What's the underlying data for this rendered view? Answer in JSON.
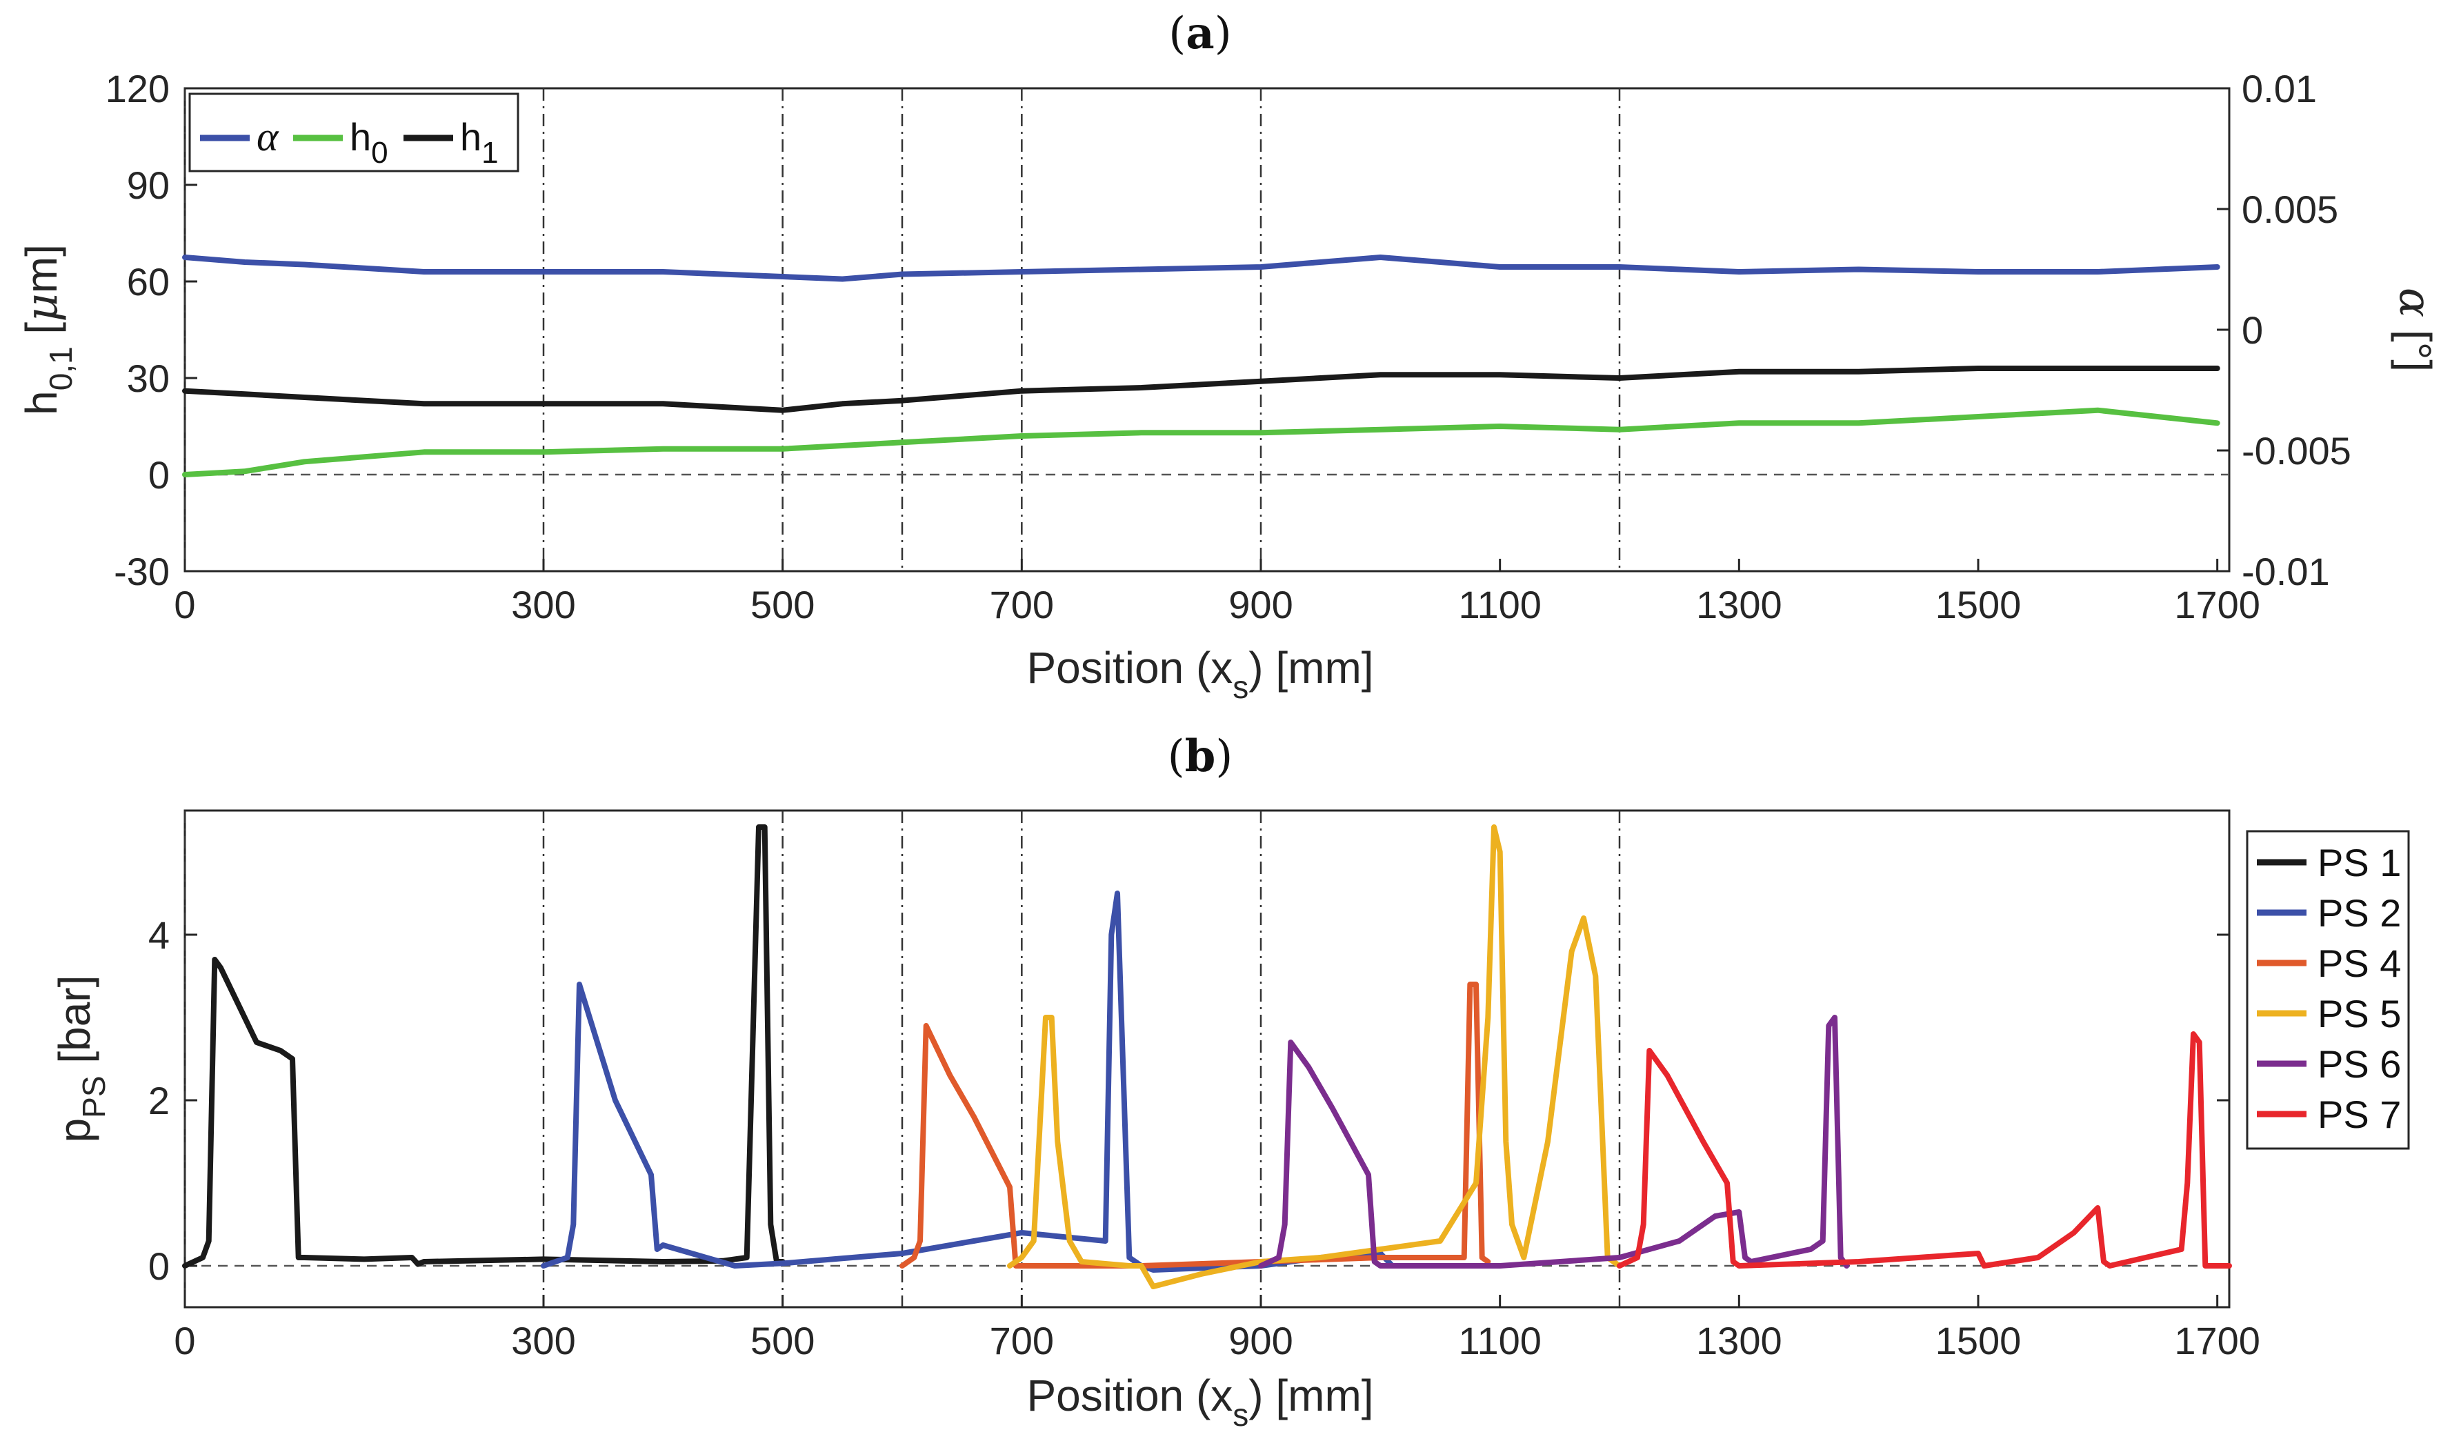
{
  "chart_data": [
    {
      "id": "a",
      "type": "line",
      "title": "(a)",
      "xlabel": "Position (x_s) [mm]",
      "ylabel": "h_0,1 [μm]",
      "y2label": "α [°]",
      "xlim": [
        0,
        1710
      ],
      "ylim": [
        -30,
        120
      ],
      "y2lim": [
        -0.01,
        0.01
      ],
      "xticks": [
        "0",
        "300",
        "500",
        "700",
        "900",
        "1100",
        "1300",
        "1500",
        "1700"
      ],
      "yticks": [
        "-30",
        "0",
        "30",
        "60",
        "90",
        "120"
      ],
      "y2ticks": [
        "-0.01",
        "-0.005",
        "0",
        "0.005",
        "0.01"
      ],
      "vlines": [
        0,
        300,
        500,
        600,
        700,
        900,
        1200
      ],
      "hline": 0,
      "legend_position": "top-left",
      "series": [
        {
          "name": "α",
          "color": "#3c50a8",
          "axis": "right",
          "x": [
            0,
            50,
            100,
            200,
            300,
            400,
            500,
            550,
            600,
            700,
            800,
            900,
            1000,
            1100,
            1200,
            1300,
            1400,
            1500,
            1600,
            1700
          ],
          "values": [
            0.003,
            0.0028,
            0.0027,
            0.0024,
            0.0024,
            0.0024,
            0.0022,
            0.0021,
            0.0023,
            0.0024,
            0.0025,
            0.0026,
            0.003,
            0.0026,
            0.0026,
            0.0024,
            0.0025,
            0.0024,
            0.0024,
            0.0026
          ]
        },
        {
          "name": "h_0",
          "color": "#57c041",
          "axis": "left",
          "x": [
            0,
            50,
            100,
            200,
            300,
            400,
            500,
            600,
            700,
            800,
            900,
            1000,
            1100,
            1200,
            1300,
            1400,
            1500,
            1600,
            1700
          ],
          "values": [
            0,
            1,
            4,
            7,
            7,
            8,
            8,
            10,
            12,
            13,
            13,
            14,
            15,
            14,
            16,
            16,
            18,
            20,
            16
          ]
        },
        {
          "name": "h_1",
          "color": "#1a1a1a",
          "axis": "left",
          "x": [
            0,
            50,
            100,
            200,
            300,
            400,
            500,
            550,
            600,
            700,
            800,
            900,
            1000,
            1100,
            1200,
            1300,
            1400,
            1500,
            1600,
            1700
          ],
          "values": [
            26,
            25,
            24,
            22,
            22,
            22,
            20,
            22,
            23,
            26,
            27,
            29,
            31,
            31,
            30,
            32,
            32,
            33,
            33,
            33
          ]
        }
      ]
    },
    {
      "id": "b",
      "type": "line",
      "title": "(b)",
      "xlabel": "Position (x_s) [mm]",
      "ylabel": "p_PS [bar]",
      "xlim": [
        0,
        1710
      ],
      "ylim": [
        -0.5,
        5.5
      ],
      "xticks": [
        "0",
        "300",
        "500",
        "700",
        "900",
        "1100",
        "1300",
        "1500",
        "1700"
      ],
      "yticks": [
        "0",
        "2",
        "4"
      ],
      "vlines": [
        0,
        300,
        500,
        600,
        700,
        900,
        1200
      ],
      "hline": 0,
      "legend_position": "outside-right",
      "series": [
        {
          "name": "PS 1",
          "color": "#1a1a1a",
          "x": [
            0,
            15,
            20,
            25,
            30,
            60,
            80,
            90,
            95,
            100,
            150,
            190,
            195,
            200,
            300,
            400,
            450,
            470,
            480,
            485,
            490,
            495,
            500
          ],
          "values": [
            0,
            0.1,
            0.3,
            3.7,
            3.6,
            2.7,
            2.6,
            2.5,
            0.1,
            0.1,
            0.08,
            0.1,
            0.02,
            0.05,
            0.08,
            0.05,
            0.06,
            0.1,
            5.3,
            5.3,
            0.5,
            0.05,
            0.05
          ]
        },
        {
          "name": "PS 2",
          "color": "#3c50a8",
          "x": [
            300,
            320,
            325,
            330,
            360,
            390,
            395,
            400,
            460,
            500,
            600,
            700,
            770,
            775,
            780,
            790,
            800,
            810,
            900,
            950,
            1000,
            1010
          ],
          "values": [
            0,
            0.1,
            0.5,
            3.4,
            2.0,
            1.1,
            0.2,
            0.25,
            0,
            0.03,
            0.15,
            0.4,
            0.3,
            4.0,
            4.5,
            0.1,
            0.0,
            -0.05,
            0,
            0.1,
            0.15,
            0
          ]
        },
        {
          "name": "PS 4",
          "color": "#e05a2b",
          "x": [
            600,
            610,
            615,
            620,
            640,
            660,
            690,
            695,
            700,
            800,
            900,
            1000,
            1070,
            1075,
            1080,
            1085,
            1090
          ],
          "values": [
            0,
            0.1,
            0.3,
            2.9,
            2.3,
            1.8,
            0.95,
            0,
            0,
            0.0,
            0.05,
            0.1,
            0.1,
            3.4,
            3.4,
            0.1,
            0.05
          ]
        },
        {
          "name": "PS 5",
          "color": "#edb120",
          "x": [
            690,
            700,
            710,
            720,
            725,
            730,
            740,
            750,
            790,
            800,
            810,
            850,
            900,
            950,
            1000,
            1050,
            1080,
            1090,
            1095,
            1100,
            1105,
            1110,
            1120,
            1140,
            1160,
            1170,
            1180,
            1190,
            1200
          ],
          "values": [
            0,
            0.1,
            0.3,
            3.0,
            3.0,
            1.5,
            0.3,
            0.05,
            0,
            0,
            -0.25,
            -0.1,
            0.05,
            0.1,
            0.2,
            0.3,
            1.0,
            3.0,
            5.3,
            5.0,
            1.5,
            0.5,
            0.1,
            1.5,
            3.8,
            4.2,
            3.5,
            0.1,
            0
          ]
        },
        {
          "name": "PS 6",
          "color": "#7b2d8e",
          "x": [
            900,
            915,
            920,
            925,
            940,
            960,
            990,
            995,
            1000,
            1100,
            1200,
            1250,
            1280,
            1300,
            1305,
            1310,
            1360,
            1370,
            1375,
            1380,
            1385,
            1390
          ],
          "values": [
            0,
            0.1,
            0.5,
            2.7,
            2.4,
            1.9,
            1.1,
            0.05,
            0,
            0,
            0.1,
            0.3,
            0.6,
            0.65,
            0.1,
            0.05,
            0.2,
            0.3,
            2.9,
            3.0,
            0.1,
            0
          ]
        },
        {
          "name": "PS 7",
          "color": "#e8262c",
          "x": [
            1200,
            1215,
            1220,
            1225,
            1240,
            1270,
            1290,
            1295,
            1300,
            1400,
            1450,
            1500,
            1505,
            1550,
            1580,
            1600,
            1605,
            1610,
            1670,
            1675,
            1680,
            1685,
            1690,
            1710
          ],
          "values": [
            0,
            0.1,
            0.5,
            2.6,
            2.3,
            1.5,
            1.0,
            0.05,
            0,
            0.05,
            0.1,
            0.15,
            0,
            0.1,
            0.4,
            0.7,
            0.05,
            0,
            0.2,
            1.0,
            2.8,
            2.7,
            0,
            0
          ]
        }
      ]
    }
  ]
}
